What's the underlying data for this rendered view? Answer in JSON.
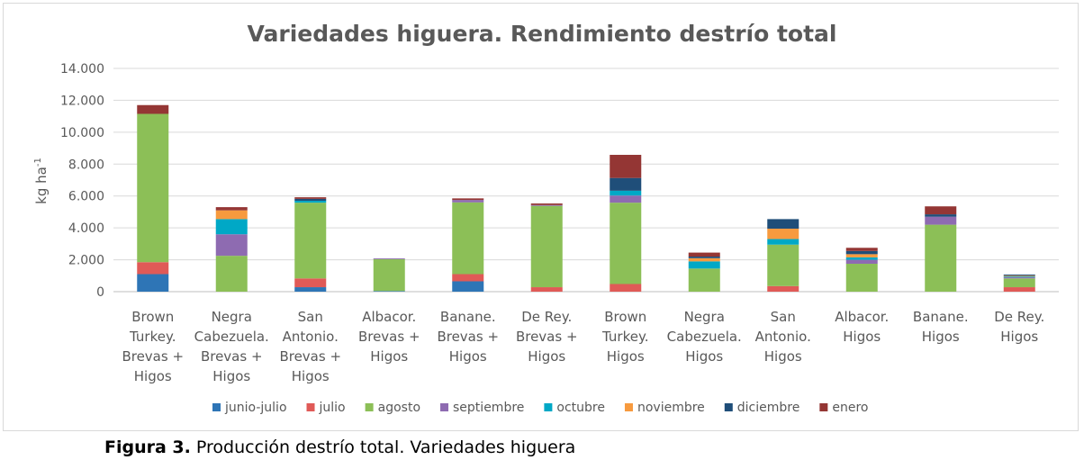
{
  "chart_data": {
    "type": "bar",
    "stacked": true,
    "title": "Variedades higuera. Rendimiento destrío total",
    "ylabel": "kg ha",
    "ylabel_sup": "-1",
    "xlabel": "",
    "ylim": [
      0,
      14000
    ],
    "yticks": [
      0,
      2000,
      4000,
      6000,
      8000,
      10000,
      12000,
      14000
    ],
    "ytick_labels": [
      "0",
      "2.000",
      "4.000",
      "6.000",
      "8.000",
      "10.000",
      "12.000",
      "14.000"
    ],
    "grid": true,
    "legend_position": "bottom",
    "categories": [
      [
        "Brown",
        "Turkey.",
        "Brevas +",
        "Higos"
      ],
      [
        "Negra",
        "Cabezuela.",
        "Brevas +",
        "Higos"
      ],
      [
        "San",
        "Antonio.",
        "Brevas +",
        "Higos"
      ],
      [
        "Albacor.",
        "Brevas +",
        "Higos"
      ],
      [
        "Banane.",
        "Brevas +",
        "Higos"
      ],
      [
        "De Rey.",
        "Brevas +",
        "Higos"
      ],
      [
        "Brown",
        "Turkey.",
        "Higos"
      ],
      [
        "Negra",
        "Cabezuela.",
        "Higos"
      ],
      [
        "San",
        "Antonio.",
        "Higos"
      ],
      [
        "Albacor.",
        "Higos"
      ],
      [
        "Banane.",
        "Higos"
      ],
      [
        "De Rey.",
        "Higos"
      ]
    ],
    "series": [
      {
        "name": "junio-julio",
        "color": "#2e75b6",
        "values": [
          1100,
          0,
          280,
          40,
          650,
          0,
          0,
          0,
          0,
          0,
          0,
          0
        ]
      },
      {
        "name": "julio",
        "color": "#e05a57",
        "values": [
          750,
          0,
          550,
          0,
          450,
          280,
          480,
          0,
          350,
          0,
          0,
          280
        ]
      },
      {
        "name": "agosto",
        "color": "#8cbf57",
        "values": [
          9300,
          2250,
          4750,
          2000,
          4500,
          5100,
          5100,
          1450,
          2600,
          1750,
          4200,
          550
        ]
      },
      {
        "name": "septiembre",
        "color": "#8e6bb1",
        "values": [
          0,
          1350,
          0,
          50,
          150,
          50,
          450,
          0,
          0,
          250,
          500,
          70
        ]
      },
      {
        "name": "octubre",
        "color": "#00a8c6",
        "values": [
          0,
          950,
          120,
          0,
          0,
          0,
          300,
          450,
          350,
          150,
          0,
          50
        ]
      },
      {
        "name": "noviembre",
        "color": "#f79a3e",
        "values": [
          0,
          550,
          0,
          0,
          0,
          0,
          0,
          200,
          650,
          200,
          0,
          50
        ]
      },
      {
        "name": "diciembre",
        "color": "#1f4e79",
        "values": [
          0,
          0,
          120,
          0,
          0,
          0,
          800,
          100,
          600,
          200,
          150,
          70
        ]
      },
      {
        "name": "enero",
        "color": "#943634",
        "values": [
          550,
          200,
          100,
          0,
          100,
          100,
          1450,
          250,
          0,
          200,
          500,
          0
        ]
      }
    ]
  },
  "caption": {
    "label": "Figura 3.",
    "text": " Producción destrío total. Variedades higuera"
  }
}
